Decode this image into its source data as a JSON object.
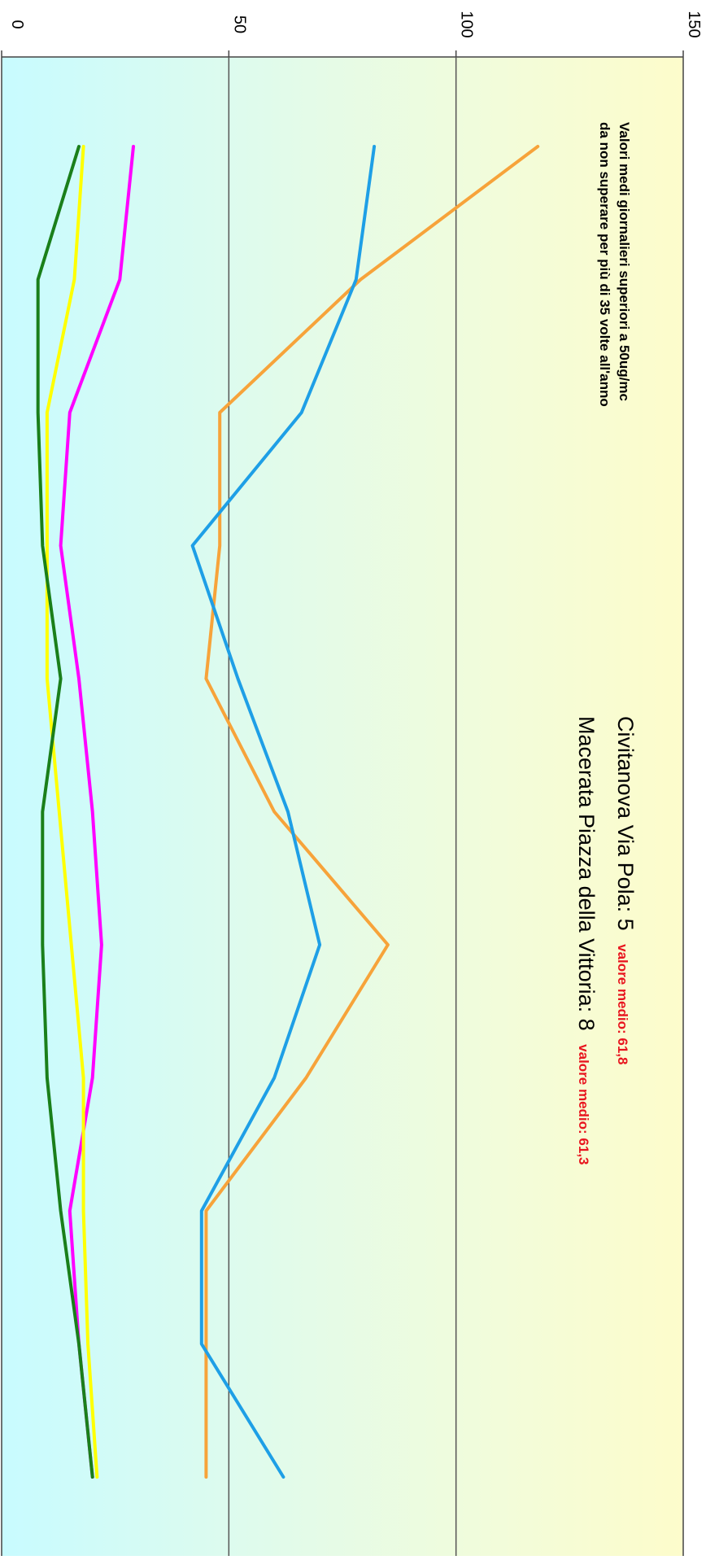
{
  "chart_data": {
    "type": "line",
    "orientation": "rotated-90-clockwise",
    "title": "",
    "xlabel": "",
    "ylabel": "",
    "ylim": [
      0,
      150
    ],
    "yticks": [
      0,
      50,
      100,
      150
    ],
    "grid": true,
    "background": "gradient-cyan-to-yellow",
    "annotations": {
      "threshold_note_line1": "Valori medi giornalieri superiori  a 50ug/mc",
      "threshold_note_line2": "da non superare per più di 35 volte all'anno",
      "stations": [
        {
          "name": "Civitanova Via Pola: 5",
          "avg": "valore medio: 61,8"
        },
        {
          "name": "Macerata Piazza della Vittoria: 8",
          "avg": "valore medio: 61,3"
        }
      ]
    },
    "x": [
      0,
      1,
      2,
      3,
      4,
      5,
      6,
      7,
      8,
      9,
      10
    ],
    "series": [
      {
        "color": "#f7a33a",
        "x": [
          0,
          1,
          2,
          3,
          4,
          5,
          6,
          7,
          8,
          9,
          10
        ],
        "values": [
          118,
          79,
          48,
          48,
          45,
          60,
          85,
          67,
          45,
          45,
          45
        ]
      },
      {
        "color": "#1e9fe6",
        "x": [
          0,
          1,
          2,
          3,
          4,
          5,
          6,
          7,
          8,
          9,
          10
        ],
        "values": [
          82,
          78,
          66,
          42,
          52,
          63,
          70,
          60,
          44,
          44,
          62
        ]
      },
      {
        "color": "#ff00ff",
        "x": [
          0,
          1,
          2,
          3,
          4,
          5,
          6,
          7,
          8,
          9,
          10
        ],
        "values": [
          29,
          26,
          15,
          13,
          17,
          20,
          22,
          20,
          15,
          17,
          20
        ]
      },
      {
        "color": "#ffff00",
        "x": [
          0,
          1,
          2,
          3,
          4,
          7,
          8,
          9,
          10
        ],
        "values": [
          18,
          16,
          10,
          10,
          10,
          18,
          18,
          19,
          21
        ]
      },
      {
        "color": "#1a7f1a",
        "x": [
          0,
          1,
          2,
          3,
          4,
          5,
          6,
          7,
          8,
          9,
          10
        ],
        "values": [
          17,
          8,
          8,
          9,
          13,
          9,
          9,
          10,
          13,
          17,
          20
        ]
      }
    ]
  }
}
